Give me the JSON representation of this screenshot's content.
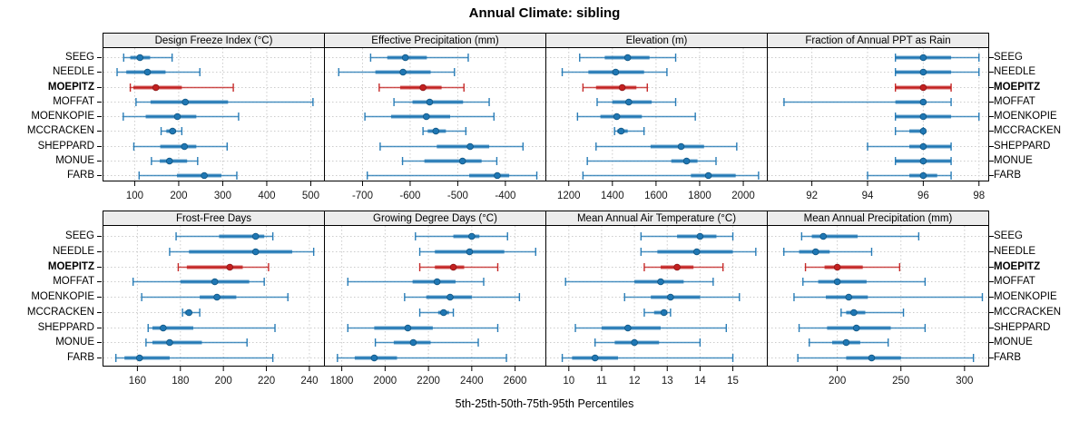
{
  "title": "Annual Climate: sibling",
  "caption": "5th-25th-50th-75th-95th Percentiles",
  "stations": [
    "SEEG",
    "NEEDLE",
    "MOEPITZ",
    "MOFFAT",
    "MOENKOPIE",
    "MCCRACKEN",
    "SHEPPARD",
    "MONUE",
    "FARB"
  ],
  "highlight_station": "MOEPITZ",
  "colors": {
    "series_blue": "#1f77b4",
    "series_blue_dark": "#11547f",
    "highlight_red": "#c3201f",
    "highlight_red_dark": "#891718",
    "header_bg": "#ececec",
    "grid": "#cccccc",
    "axis_text": "#1a1a1a"
  },
  "chart_data": [
    {
      "type": "dotplot-interval",
      "title": "Design Freeze Index (°C)",
      "row": 0,
      "col": 0,
      "xlim": [
        28,
        531
      ],
      "ticks": [
        100,
        200,
        300,
        400,
        500
      ],
      "percentiles": [
        5,
        25,
        50,
        75,
        95
      ],
      "series": {
        "SEEG": [
          75,
          90,
          112,
          135,
          185
        ],
        "NEEDLE": [
          60,
          81,
          129,
          170,
          248
        ],
        "MOEPITZ": [
          90,
          97,
          148,
          207,
          324
        ],
        "MOFFAT": [
          103,
          136,
          215,
          312,
          505
        ],
        "MOENKOPIE": [
          74,
          125,
          197,
          240,
          336
        ],
        "MCCRACKEN": [
          160,
          172,
          186,
          194,
          207
        ],
        "SHEPPARD": [
          98,
          158,
          213,
          240,
          310
        ],
        "MONUE": [
          138,
          157,
          179,
          219,
          243
        ],
        "FARB": [
          110,
          196,
          258,
          297,
          332
        ]
      }
    },
    {
      "type": "dotplot-interval",
      "title": "Effective Precipitation (mm)",
      "row": 0,
      "col": 1,
      "xlim": [
        -780,
        -315
      ],
      "ticks": [
        -700,
        -600,
        -500,
        -400
      ],
      "percentiles": [
        5,
        25,
        50,
        75,
        95
      ],
      "series": {
        "SEEG": [
          -683,
          -648,
          -610,
          -565,
          -478
        ],
        "NEEDLE": [
          -750,
          -673,
          -615,
          -557,
          -507
        ],
        "MOEPITZ": [
          -665,
          -621,
          -573,
          -534,
          -487
        ],
        "MOFFAT": [
          -634,
          -595,
          -559,
          -489,
          -434
        ],
        "MOENKOPIE": [
          -695,
          -640,
          -566,
          -516,
          -424
        ],
        "MCCRACKEN": [
          -573,
          -563,
          -546,
          -525,
          -483
        ],
        "SHEPPARD": [
          -663,
          -544,
          -474,
          -434,
          -363
        ],
        "MONUE": [
          -616,
          -570,
          -490,
          -450,
          -418
        ],
        "FARB": [
          -690,
          -476,
          -417,
          -392,
          -334
        ]
      }
    },
    {
      "type": "dotplot-interval",
      "title": "Elevation (m)",
      "row": 0,
      "col": 2,
      "xlim": [
        1095,
        2110
      ],
      "ticks": [
        1200,
        1400,
        1600,
        1800,
        2000
      ],
      "percentiles": [
        5,
        25,
        50,
        75,
        95
      ],
      "series": {
        "SEEG": [
          1250,
          1365,
          1470,
          1570,
          1690
        ],
        "NEEDLE": [
          1170,
          1290,
          1415,
          1545,
          1650
        ],
        "MOEPITZ": [
          1265,
          1325,
          1445,
          1510,
          1560
        ],
        "MOFFAT": [
          1330,
          1400,
          1475,
          1580,
          1690
        ],
        "MOENKOPIE": [
          1240,
          1345,
          1420,
          1535,
          1780
        ],
        "MCCRACKEN": [
          1410,
          1422,
          1440,
          1470,
          1545
        ],
        "SHEPPARD": [
          1325,
          1575,
          1715,
          1820,
          1970
        ],
        "MONUE": [
          1285,
          1670,
          1740,
          1790,
          1875
        ],
        "FARB": [
          1265,
          1760,
          1840,
          1965,
          2070
        ]
      }
    },
    {
      "type": "dotplot-interval",
      "title": "Fraction of Annual PPT as Rain",
      "row": 0,
      "col": 3,
      "xlim": [
        90.4,
        98.35
      ],
      "ticks": [
        92,
        94,
        96,
        98
      ],
      "percentiles": [
        5,
        25,
        50,
        75,
        95
      ],
      "series": {
        "SEEG": [
          95,
          95,
          96,
          97,
          98
        ],
        "NEEDLE": [
          95,
          95,
          96,
          97,
          98
        ],
        "MOEPITZ": [
          95,
          95,
          96,
          97,
          97
        ],
        "MOFFAT": [
          91,
          95,
          96,
          96,
          97
        ],
        "MOENKOPIE": [
          95,
          95,
          96,
          97,
          98
        ],
        "MCCRACKEN": [
          95,
          95.5,
          96,
          96,
          96
        ],
        "SHEPPARD": [
          94,
          95.5,
          96,
          97,
          97
        ],
        "MONUE": [
          95,
          95,
          96,
          97,
          97
        ],
        "FARB": [
          94,
          95.5,
          96,
          96.5,
          97
        ]
      }
    },
    {
      "type": "dotplot-interval",
      "title": "Frost-Free Days",
      "row": 1,
      "col": 0,
      "xlim": [
        144,
        247
      ],
      "ticks": [
        160,
        180,
        200,
        220,
        240
      ],
      "percentiles": [
        5,
        25,
        50,
        75,
        95
      ],
      "series": {
        "SEEG": [
          178,
          198,
          215,
          219,
          223
        ],
        "NEEDLE": [
          175,
          184,
          215,
          232,
          242
        ],
        "MOEPITZ": [
          179,
          183,
          203,
          209,
          221
        ],
        "MOFFAT": [
          158,
          180,
          196,
          212,
          219
        ],
        "MOENKOPIE": [
          162,
          189,
          197,
          206,
          230
        ],
        "MCCRACKEN": [
          181,
          182,
          184,
          185,
          189
        ],
        "SHEPPARD": [
          165,
          167,
          172,
          186,
          224
        ],
        "MONUE": [
          164,
          167,
          175,
          190,
          211
        ],
        "FARB": [
          150,
          154,
          161,
          175,
          223
        ]
      }
    },
    {
      "type": "dotplot-interval",
      "title": "Growing Degree Days (°C)",
      "row": 1,
      "col": 1,
      "xlim": [
        1720,
        2742
      ],
      "ticks": [
        1800,
        2000,
        2200,
        2400,
        2600
      ],
      "percentiles": [
        5,
        25,
        50,
        75,
        95
      ],
      "series": {
        "SEEG": [
          2140,
          2315,
          2400,
          2435,
          2565
        ],
        "NEEDLE": [
          2160,
          2230,
          2390,
          2550,
          2695
        ],
        "MOEPITZ": [
          2160,
          2230,
          2315,
          2365,
          2520
        ],
        "MOFFAT": [
          1828,
          2127,
          2240,
          2325,
          2455
        ],
        "MOENKOPIE": [
          2090,
          2190,
          2300,
          2400,
          2620
        ],
        "MCCRACKEN": [
          2160,
          2245,
          2270,
          2295,
          2315
        ],
        "SHEPPARD": [
          1828,
          1950,
          2105,
          2220,
          2520
        ],
        "MONUE": [
          1955,
          2040,
          2130,
          2210,
          2430
        ],
        "FARB": [
          1780,
          1860,
          1950,
          2055,
          2560
        ]
      }
    },
    {
      "type": "dotplot-interval",
      "title": "Mean Annual Air Temperature (°C)",
      "row": 1,
      "col": 2,
      "xlim": [
        9.3,
        16.05
      ],
      "ticks": [
        10,
        11,
        12,
        13,
        14,
        15
      ],
      "percentiles": [
        5,
        25,
        50,
        75,
        95
      ],
      "series": {
        "SEEG": [
          12.2,
          13.3,
          14.0,
          14.5,
          15.0
        ],
        "NEEDLE": [
          12.2,
          12.7,
          13.9,
          15.0,
          15.7
        ],
        "MOEPITZ": [
          12.3,
          12.8,
          13.3,
          13.8,
          14.7
        ],
        "MOFFAT": [
          9.9,
          12.0,
          12.8,
          13.5,
          14.4
        ],
        "MOENKOPIE": [
          11.7,
          12.5,
          13.1,
          14.0,
          15.2
        ],
        "MCCRACKEN": [
          12.3,
          12.6,
          12.9,
          13.0,
          13.1
        ],
        "SHEPPARD": [
          10.2,
          11.0,
          11.8,
          12.8,
          14.8
        ],
        "MONUE": [
          10.8,
          11.4,
          12.0,
          12.75,
          14.0
        ],
        "FARB": [
          9.8,
          10.1,
          10.8,
          11.5,
          15.0
        ]
      }
    },
    {
      "type": "dotplot-interval",
      "title": "Mean Annual Precipitation (mm)",
      "row": 1,
      "col": 3,
      "xlim": [
        145,
        319
      ],
      "ticks": [
        200,
        250,
        300
      ],
      "percentiles": [
        5,
        25,
        50,
        75,
        95
      ],
      "series": {
        "SEEG": [
          172,
          180,
          189,
          216,
          264
        ],
        "NEEDLE": [
          158,
          170,
          183,
          194,
          227
        ],
        "MOEPITZ": [
          175,
          190,
          200,
          220,
          249
        ],
        "MOFFAT": [
          173,
          185,
          200,
          223,
          269
        ],
        "MOENKOPIE": [
          166,
          191,
          209,
          224,
          314
        ],
        "MCCRACKEN": [
          203,
          207,
          213,
          222,
          252
        ],
        "SHEPPARD": [
          170,
          192,
          215,
          242,
          269
        ],
        "MONUE": [
          178,
          196,
          207,
          218,
          240
        ],
        "FARB": [
          169,
          207,
          227,
          250,
          307
        ]
      }
    }
  ]
}
